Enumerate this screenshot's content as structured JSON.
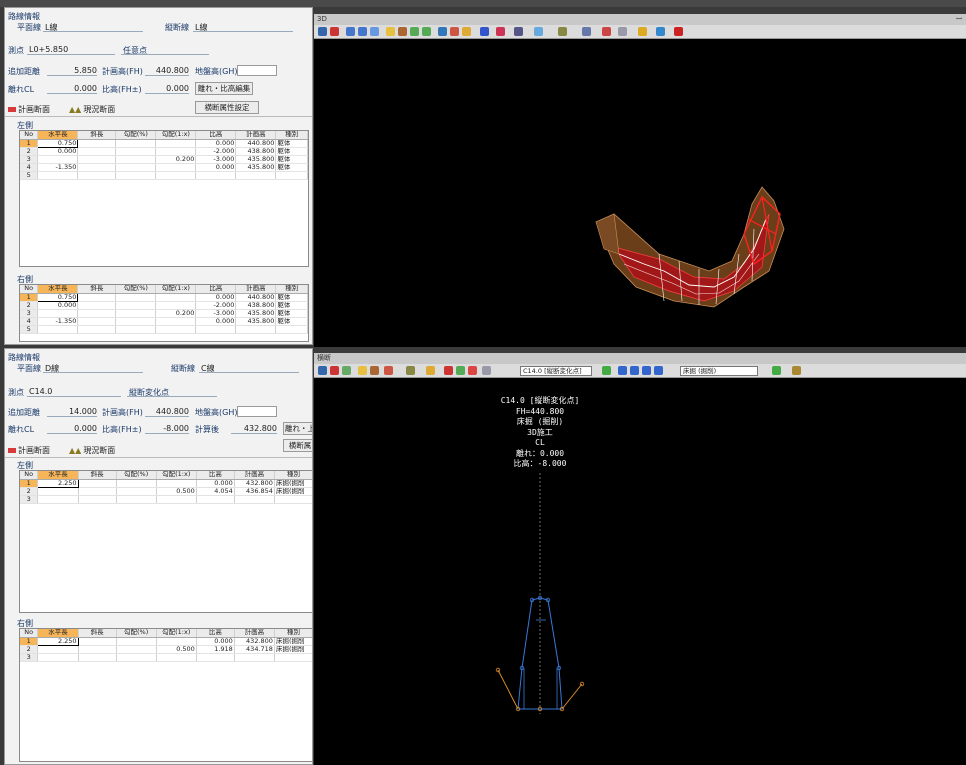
{
  "top_panel": {
    "header": "路線情報",
    "plan_label": "平面線",
    "plan_value": "L線",
    "profile_label": "縦断線",
    "profile_value": "L線",
    "station_label": "測点",
    "station_value": "L0+5.850",
    "station_type": "任意点",
    "add_dist_label": "追加距離",
    "add_dist_value": "5.850",
    "fh_label": "計画高(FH)",
    "fh_value": "440.800",
    "gh_label": "地盤高(GH)",
    "gh_value": "",
    "cl_label": "離れCL",
    "cl_value": "0.000",
    "rel_label": "比高(FH±)",
    "rel_value": "0.000",
    "edit_button": "離れ・比高編集",
    "attr_button": "横断属性設定",
    "tab_plan": "計画断面",
    "tab_current": "現況断面",
    "left_label": "左側",
    "right_label": "右側",
    "columns": [
      "No",
      "水平長",
      "斜長",
      "勾配(%)",
      "勾配(1:x)",
      "比高",
      "計画高",
      "種別"
    ],
    "left_rows": [
      [
        "1",
        "0.750",
        "",
        "",
        "",
        "0.000",
        "440.800",
        "躯体"
      ],
      [
        "2",
        "0.000",
        "",
        "",
        "",
        "-2.000",
        "438.800",
        "躯体"
      ],
      [
        "3",
        "",
        "",
        "",
        "0.200",
        "-3.000",
        "435.800",
        "躯体"
      ],
      [
        "4",
        "-1.350",
        "",
        "",
        "",
        "0.000",
        "435.800",
        "躯体"
      ],
      [
        "5",
        "",
        "",
        "",
        "",
        "",
        "",
        ""
      ]
    ],
    "right_rows": [
      [
        "1",
        "0.750",
        "",
        "",
        "",
        "0.000",
        "440.800",
        "躯体"
      ],
      [
        "2",
        "0.000",
        "",
        "",
        "",
        "-2.000",
        "438.800",
        "躯体"
      ],
      [
        "3",
        "",
        "",
        "",
        "0.200",
        "-3.000",
        "435.800",
        "躯体"
      ],
      [
        "4",
        "-1.350",
        "",
        "",
        "",
        "0.000",
        "435.800",
        "躯体"
      ],
      [
        "5",
        "",
        "",
        "",
        "",
        "",
        "",
        ""
      ]
    ]
  },
  "bottom_panel": {
    "header": "路線情報",
    "plan_label": "平面線",
    "plan_value": "D線",
    "profile_label": "縦断線",
    "profile_value": "C線",
    "station_label": "測点",
    "station_value": "C14.0",
    "station_type": "縦断変化点",
    "add_dist_label": "追加距離",
    "add_dist_value": "14.000",
    "fh_label": "計画高(FH)",
    "fh_value": "440.800",
    "gh_label": "地盤高(GH)",
    "gh_value": "",
    "cl_label": "離れCL",
    "cl_value": "0.000",
    "rel_label": "比高(FH±)",
    "rel_value": "-8.000",
    "calc_label": "計算後",
    "calc_value": "432.800",
    "edit_button": "離れ・上",
    "attr_button": "横断属",
    "tab_plan": "計画断面",
    "tab_current": "現況断面",
    "left_label": "左側",
    "right_label": "右側",
    "columns": [
      "No",
      "水平長",
      "斜長",
      "勾配(%)",
      "勾配(1:x)",
      "比高",
      "計画高",
      "種別"
    ],
    "left_rows": [
      [
        "1",
        "2.250",
        "",
        "",
        "",
        "0.000",
        "432.800",
        "床掘(掘削"
      ],
      [
        "2",
        "",
        "",
        "",
        "0.500",
        "4.054",
        "436.854",
        "床掘(掘削"
      ],
      [
        "3",
        "",
        "",
        "",
        "",
        "",
        "",
        ""
      ]
    ],
    "right_rows": [
      [
        "1",
        "2.250",
        "",
        "",
        "",
        "0.000",
        "432.800",
        "床掘(掘削"
      ],
      [
        "2",
        "",
        "",
        "",
        "0.500",
        "1.918",
        "434.718",
        "床掘(掘削"
      ],
      [
        "3",
        "",
        "",
        "",
        "",
        "",
        "",
        ""
      ]
    ]
  },
  "viewer_3d": {
    "title": "3D",
    "pin": "ꟷ"
  },
  "viewer_section": {
    "title": "横断",
    "station_combo": "C14.0 [縦断変化点]",
    "type_combo": "床掘 (掘削)",
    "ann": {
      "line1": "C14.0 [縦断変化点]",
      "line2": "FH=440.800",
      "line3": "床掘 (掘削)",
      "line4": "3D施工",
      "line5": "CL",
      "line6": "離れ：0.000",
      "line7": "比高：-8.000"
    }
  },
  "colors": {
    "selected_header": "#f7b55a",
    "model_red": "#e01010",
    "model_brown": "#8b5a2b",
    "section_blue": "#3a78d8",
    "section_orange": "#d88a28"
  }
}
